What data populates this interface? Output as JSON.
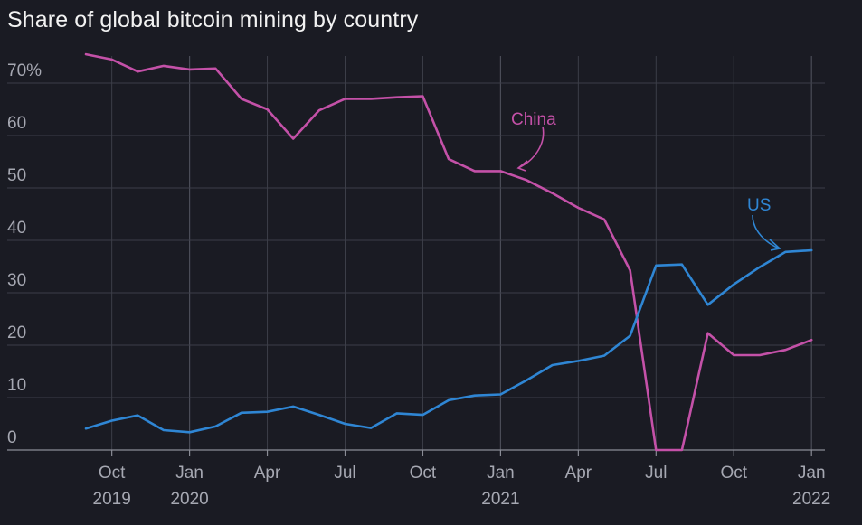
{
  "title": "Share of global bitcoin mining by country",
  "chart_data": {
    "type": "line",
    "title": "Share of global bitcoin mining by country",
    "xlabel": "",
    "ylabel": "",
    "ylim": [
      0,
      75
    ],
    "y_ticks": [
      {
        "value": 0,
        "label": "0"
      },
      {
        "value": 10,
        "label": "10"
      },
      {
        "value": 20,
        "label": "20"
      },
      {
        "value": 30,
        "label": "30"
      },
      {
        "value": 40,
        "label": "40"
      },
      {
        "value": 50,
        "label": "50"
      },
      {
        "value": 60,
        "label": "60"
      },
      {
        "value": 70,
        "label": "70%"
      }
    ],
    "x_ticks": [
      {
        "x": "2019-10",
        "label": "Oct",
        "year": "2019"
      },
      {
        "x": "2020-01",
        "label": "Jan",
        "year": "2020"
      },
      {
        "x": "2020-04",
        "label": "Apr",
        "year": ""
      },
      {
        "x": "2020-07",
        "label": "Jul",
        "year": ""
      },
      {
        "x": "2020-10",
        "label": "Oct",
        "year": ""
      },
      {
        "x": "2021-01",
        "label": "Jan",
        "year": "2021"
      },
      {
        "x": "2021-04",
        "label": "Apr",
        "year": ""
      },
      {
        "x": "2021-07",
        "label": "Jul",
        "year": ""
      },
      {
        "x": "2021-10",
        "label": "Oct",
        "year": ""
      },
      {
        "x": "2022-01",
        "label": "Jan",
        "year": "2022"
      }
    ],
    "x": [
      "2019-09",
      "2019-10",
      "2019-11",
      "2019-12",
      "2020-01",
      "2020-02",
      "2020-03",
      "2020-04",
      "2020-05",
      "2020-06",
      "2020-07",
      "2020-08",
      "2020-09",
      "2020-10",
      "2020-11",
      "2020-12",
      "2021-01",
      "2021-02",
      "2021-03",
      "2021-04",
      "2021-05",
      "2021-06",
      "2021-07",
      "2021-08",
      "2021-09",
      "2021-10",
      "2021-11",
      "2021-12",
      "2022-01"
    ],
    "series": [
      {
        "name": "China",
        "color": "#c451a8",
        "values": [
          75.5,
          74.5,
          72.2,
          73.3,
          72.6,
          72.8,
          67.0,
          65.0,
          59.4,
          64.8,
          67.0,
          67.0,
          67.3,
          67.5,
          55.5,
          53.2,
          53.2,
          51.5,
          49.0,
          46.2,
          44.0,
          34.3,
          0,
          0,
          22.3,
          18.1,
          18.1,
          19.1,
          21.0
        ]
      },
      {
        "name": "US",
        "color": "#2f86d4",
        "values": [
          4.1,
          5.6,
          6.6,
          3.8,
          3.4,
          4.5,
          7.1,
          7.3,
          8.3,
          6.7,
          5.0,
          4.2,
          7.0,
          6.7,
          9.5,
          10.4,
          10.6,
          13.3,
          16.2,
          17.0,
          18.0,
          21.8,
          35.2,
          35.4,
          27.7,
          31.6,
          34.9,
          37.8,
          38.1
        ]
      }
    ],
    "annotations": [
      {
        "text": "China",
        "series": "China",
        "color": "#c451a8"
      },
      {
        "text": "US",
        "series": "US",
        "color": "#2f86d4"
      }
    ]
  }
}
